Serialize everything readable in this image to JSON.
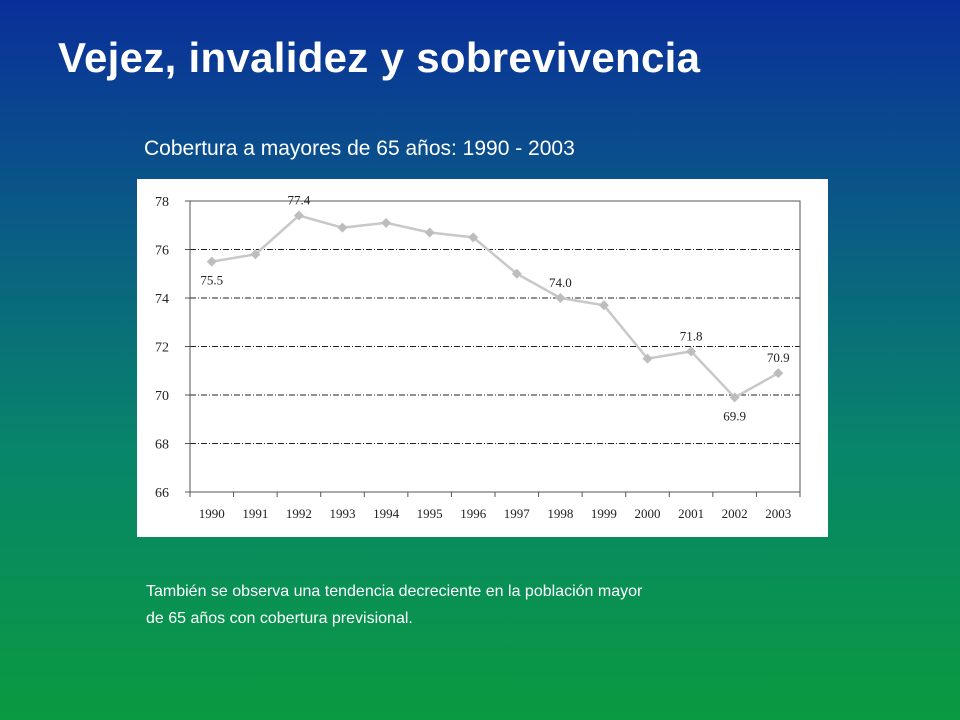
{
  "slide": {
    "title": "Vejez, invalidez y sobrevivencia",
    "chart_caption": "Cobertura a mayores de 65 años:  1990 - 2003",
    "note_lines": [
      "También se observa una tendencia decreciente en la población mayor",
      "de 65 años con cobertura previsional."
    ]
  },
  "colors": {
    "line": "#c8c8c8",
    "marker": "#bdbdbd",
    "gridline": "#222222",
    "text": "#222222"
  },
  "chart_data": {
    "type": "line",
    "title": "Cobertura a mayores de 65 años:  1990 - 2003",
    "xlabel": "",
    "ylabel": "",
    "categories": [
      "1990",
      "1991",
      "1992",
      "1993",
      "1994",
      "1995",
      "1996",
      "1997",
      "1998",
      "1999",
      "2000",
      "2001",
      "2002",
      "2003"
    ],
    "series": [
      {
        "values": [
          75.5,
          75.8,
          77.4,
          76.9,
          77.1,
          76.7,
          76.5,
          75.0,
          74.0,
          73.7,
          71.5,
          71.8,
          69.9,
          70.9
        ]
      }
    ],
    "ylim": [
      66,
      78
    ],
    "yticks": [
      66,
      68,
      70,
      72,
      74,
      76,
      78
    ],
    "data_labels": [
      {
        "index": 0,
        "text": "75.5",
        "position": "below"
      },
      {
        "index": 2,
        "text": "77.4",
        "position": "above"
      },
      {
        "index": 8,
        "text": "74.0",
        "position": "above"
      },
      {
        "index": 11,
        "text": "71.8",
        "position": "above"
      },
      {
        "index": 12,
        "text": "69.9",
        "position": "below"
      },
      {
        "index": 13,
        "text": "70.9",
        "position": "above"
      }
    ],
    "grid": true,
    "legend": "none"
  }
}
